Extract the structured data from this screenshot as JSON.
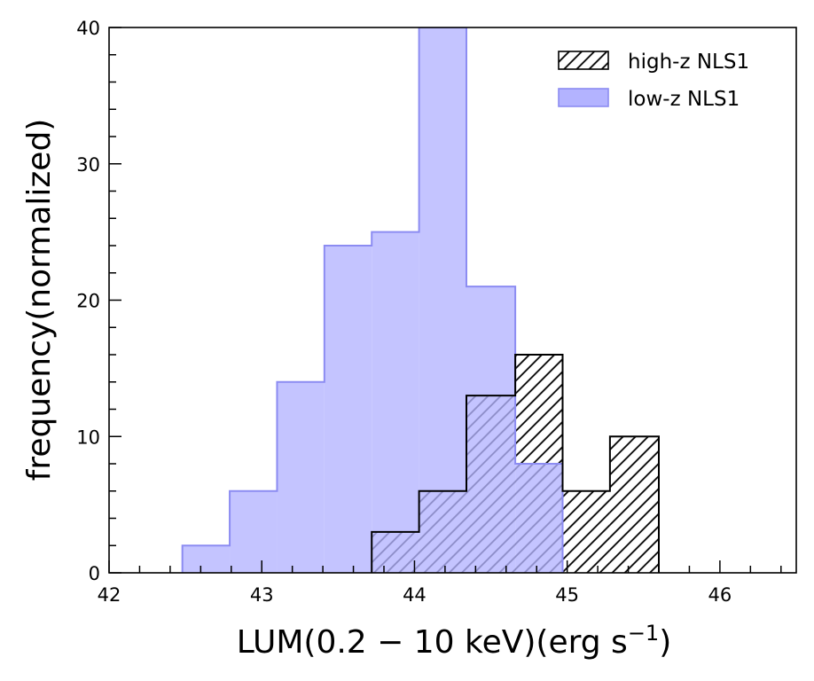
{
  "chart_data": {
    "type": "histogram",
    "xlabel": "LUM(0.2 − 10 keV)(erg s",
    "xlabel_sup": "−1",
    "xlabel_close": ")",
    "ylabel": "frequency(normalized)",
    "xlim": [
      42,
      46.5
    ],
    "ylim": [
      0,
      40
    ],
    "x_major_ticks": [
      42,
      43,
      44,
      45,
      46
    ],
    "x_minor_step": 0.2,
    "y_major_ticks": [
      0,
      10,
      20,
      30,
      40
    ],
    "y_minor_step": 2,
    "legend_position": "upper right",
    "series": [
      {
        "name": "low-z NLS1",
        "style": "filled",
        "color": "#b3b3ff",
        "edge_color": "#8c8cf2",
        "bin_edges": [
          42.48,
          42.79,
          43.1,
          43.41,
          43.72,
          44.03,
          44.34,
          44.66,
          44.97
        ],
        "values": [
          2,
          6,
          14,
          24,
          25,
          40,
          21,
          8
        ]
      },
      {
        "name": "high-z NLS1",
        "style": "hatched",
        "color": "#000000",
        "bin_edges": [
          43.72,
          44.03,
          44.34,
          44.66,
          44.97,
          45.28,
          45.6
        ],
        "values": [
          3,
          6,
          13,
          16,
          6,
          10
        ]
      }
    ]
  }
}
